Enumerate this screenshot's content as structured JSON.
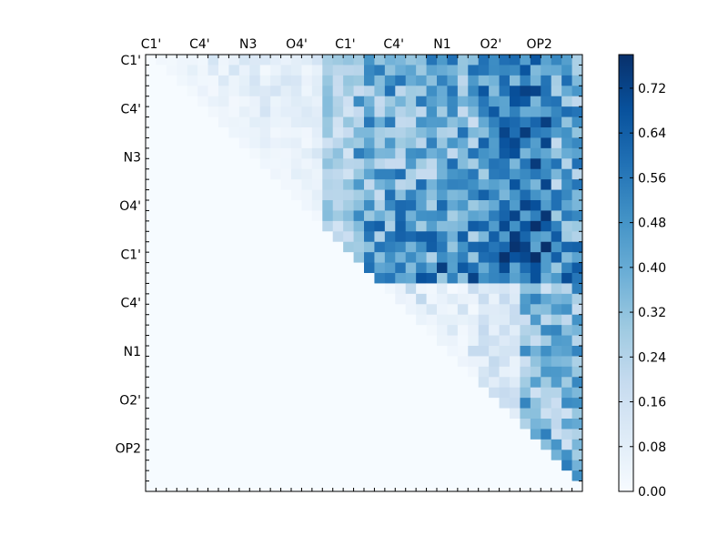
{
  "chart_data": {
    "type": "heatmap",
    "title": "",
    "xlabel": "",
    "ylabel": "",
    "row_labels": [
      "C1'",
      "C4'",
      "N3",
      "O4'",
      "C1'",
      "C4'",
      "N1",
      "O2'",
      "OP2"
    ],
    "col_labels": [
      "C1'",
      "C4'",
      "N3",
      "O4'",
      "C1'",
      "C4'",
      "N1",
      "O2'",
      "OP2"
    ],
    "n_cells": 42,
    "colormap": "Blues",
    "color_min": "#f7fbff",
    "color_max": "#08306b",
    "value_range": [
      0.0,
      0.78
    ],
    "colorbar_ticks": [
      "0.00",
      "0.08",
      "0.16",
      "0.24",
      "0.32",
      "0.40",
      "0.48",
      "0.56",
      "0.64",
      "0.72"
    ],
    "colorbar_tick_values": [
      0.0,
      0.08,
      0.16,
      0.24,
      0.32,
      0.4,
      0.48,
      0.56,
      0.64,
      0.72
    ],
    "pattern": "upper-triangular matrix; lower triangle and diagonal near 0.00; strongest values (approx. 0.60-0.78) in the upper-right block around the O2' and OP2 columns of rows C1' to C1'",
    "grid": false
  }
}
